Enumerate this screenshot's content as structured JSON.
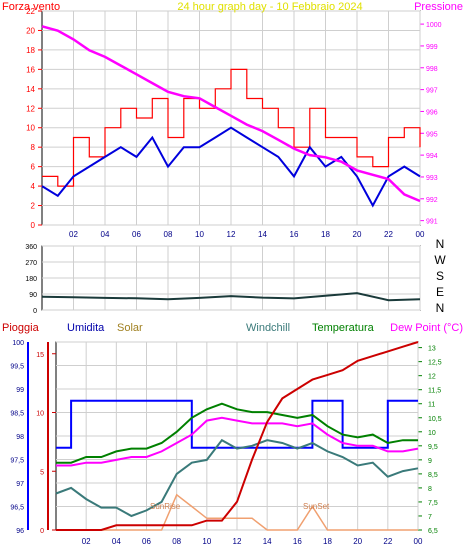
{
  "top": {
    "title": "24 hour graph day - 10 Febbraio 2024",
    "left_label": "Forza vento",
    "right_label": "Pressione",
    "left_ticks": [
      "0",
      "2",
      "4",
      "6",
      "8",
      "10",
      "12",
      "14",
      "16",
      "18",
      "20",
      "22"
    ],
    "right_ticks": [
      "991",
      "992",
      "993",
      "994",
      "995",
      "996",
      "997",
      "998",
      "999",
      "1000"
    ]
  },
  "dir": {
    "ticks": [
      "0",
      "90",
      "180",
      "270",
      "360"
    ],
    "compass": [
      "N",
      "W",
      "S",
      "E",
      "N"
    ]
  },
  "bottom": {
    "labels": {
      "rain": "Pioggia",
      "humidity": "Umidita",
      "solar": "Solar",
      "windchill": "Windchill",
      "temperature": "Temperatura",
      "dewpoint": "Dew Point (°C)"
    },
    "left_ticks": [
      "96",
      "96,5",
      "97",
      "97,5",
      "98",
      "98,5",
      "99",
      "99,5",
      "100"
    ],
    "hum_ticks": [
      "0",
      "5",
      "10",
      "15"
    ],
    "right_ticks": [
      "6,5",
      "7",
      "7,5",
      "8",
      "8,5",
      "9",
      "9,5",
      "10",
      "10,5",
      "11",
      "11,5",
      "12",
      "12,5",
      "13"
    ],
    "annotations": {
      "sunrise": "SunRise",
      "sunset": "SunSet"
    }
  },
  "x_ticks": [
    "02",
    "04",
    "06",
    "08",
    "10",
    "12",
    "14",
    "16",
    "18",
    "20",
    "22",
    "00"
  ],
  "colors": {
    "wind": "#ff0000",
    "gust_avg": "#0000dd",
    "pressure": "#ff00ff",
    "direction": "#1a3a3a",
    "humidity": "#0000ff",
    "solar": "#f0a070",
    "windchill": "#3a7a7a",
    "temperature": "#008000",
    "dewpoint": "#ff00ff",
    "rain": "#cc0000"
  },
  "chart_data": [
    {
      "type": "line",
      "title": "24 hour graph day - 10 Febbraio 2024",
      "x": [
        0,
        1,
        2,
        3,
        4,
        5,
        6,
        7,
        8,
        9,
        10,
        11,
        12,
        13,
        14,
        15,
        16,
        17,
        18,
        19,
        20,
        21,
        22,
        23,
        24
      ],
      "series": [
        {
          "name": "Forza vento",
          "values": [
            5,
            4,
            9,
            7,
            10,
            12,
            11,
            13,
            9,
            13,
            12,
            14,
            16,
            13,
            12,
            10,
            8,
            12,
            9,
            9,
            7,
            6,
            9,
            10,
            8
          ]
        },
        {
          "name": "Forza vento",
          "values": [
            4,
            3,
            5,
            6,
            7,
            8,
            7,
            9,
            6,
            8,
            8,
            9,
            10,
            9,
            8,
            7,
            5,
            8,
            6,
            7,
            5,
            2,
            5,
            6,
            5
          ]
        },
        {
          "name": "Pressione",
          "values": [
            999.9,
            999.7,
            999.3,
            998.8,
            998.5,
            998.1,
            997.7,
            997.3,
            996.9,
            996.7,
            996.6,
            996.2,
            995.8,
            995.4,
            995.1,
            994.7,
            994.3,
            994.0,
            993.9,
            993.7,
            993.3,
            993.1,
            992.9,
            992.2,
            991.9
          ]
        }
      ],
      "ylim_left": [
        0,
        22
      ],
      "ylim_right": [
        990.8,
        1000.6
      ]
    },
    {
      "type": "line",
      "x": [
        0,
        2,
        4,
        6,
        8,
        10,
        12,
        14,
        16,
        18,
        20,
        22,
        24
      ],
      "series": [
        {
          "name": "direction",
          "values": [
            75,
            72,
            68,
            66,
            60,
            68,
            78,
            70,
            65,
            80,
            95,
            55,
            60
          ]
        }
      ],
      "ylim": [
        0,
        360
      ]
    },
    {
      "type": "line",
      "x": [
        0,
        1,
        2,
        3,
        4,
        5,
        6,
        7,
        8,
        9,
        10,
        11,
        12,
        13,
        14,
        15,
        16,
        17,
        18,
        19,
        20,
        21,
        22,
        23,
        24
      ],
      "series": [
        {
          "name": "Umidita",
          "values": [
            7,
            11,
            11,
            11,
            11,
            11,
            11,
            11,
            11,
            7,
            7,
            7,
            7,
            7,
            7,
            7,
            7,
            11,
            11,
            7,
            7,
            7,
            11,
            11,
            11
          ]
        },
        {
          "name": "Solar",
          "values": [
            0,
            0,
            0,
            0,
            0,
            0,
            0,
            0,
            3,
            2,
            1,
            1,
            1,
            1,
            0,
            0,
            0,
            2,
            0,
            0,
            0,
            0,
            0,
            0,
            0
          ]
        },
        {
          "name": "Windchill",
          "values": [
            7.8,
            8.0,
            7.6,
            7.3,
            7.3,
            7.0,
            7.2,
            7.5,
            8.5,
            8.9,
            9.0,
            9.7,
            9.4,
            9.5,
            9.7,
            9.6,
            9.4,
            9.6,
            9.3,
            9.1,
            8.8,
            8.9,
            8.4,
            8.6,
            8.7
          ]
        },
        {
          "name": "Temperatura",
          "values": [
            8.9,
            8.9,
            9.1,
            9.1,
            9.3,
            9.4,
            9.4,
            9.6,
            10.0,
            10.5,
            10.8,
            11.0,
            10.8,
            10.7,
            10.7,
            10.6,
            10.5,
            10.6,
            10.2,
            9.9,
            9.8,
            9.9,
            9.6,
            9.7,
            9.7
          ]
        },
        {
          "name": "Dew Point (°C)",
          "values": [
            8.8,
            8.8,
            8.9,
            8.9,
            9.0,
            9.1,
            9.1,
            9.3,
            9.6,
            9.9,
            10.4,
            10.5,
            10.4,
            10.3,
            10.3,
            10.3,
            10.2,
            10.3,
            9.9,
            9.6,
            9.5,
            9.5,
            9.3,
            9.3,
            9.4
          ]
        },
        {
          "name": "Pioggia",
          "values": [
            96.0,
            96.0,
            96.0,
            96.0,
            96.1,
            96.1,
            96.1,
            96.1,
            96.1,
            96.1,
            96.2,
            96.2,
            96.6,
            97.5,
            98.3,
            98.8,
            99.0,
            99.2,
            99.3,
            99.4,
            99.6,
            99.7,
            99.8,
            99.9,
            100.0
          ]
        }
      ],
      "ylim_left": [
        96,
        100
      ],
      "ylim_hum": [
        0,
        16
      ],
      "ylim_right": [
        6.5,
        13.2
      ]
    }
  ]
}
